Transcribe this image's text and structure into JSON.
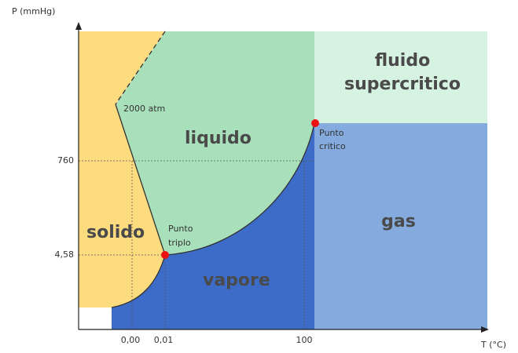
{
  "axes": {
    "y_label": "P (mmHg)",
    "x_label": "T (°C)",
    "y_ticks": [
      "760",
      "4,58"
    ],
    "x_ticks": [
      "0,00",
      "0,01",
      "100"
    ]
  },
  "regions": {
    "solid": "solido",
    "liquid": "liquido",
    "vapor": "vapore",
    "gas": "gas",
    "supercritical": [
      "fluido",
      "supercritico"
    ]
  },
  "annotations": {
    "pressure": "2000 atm",
    "triple_point": [
      "Punto",
      "triplo"
    ],
    "critical_point": [
      "Punto",
      "critico"
    ]
  }
}
